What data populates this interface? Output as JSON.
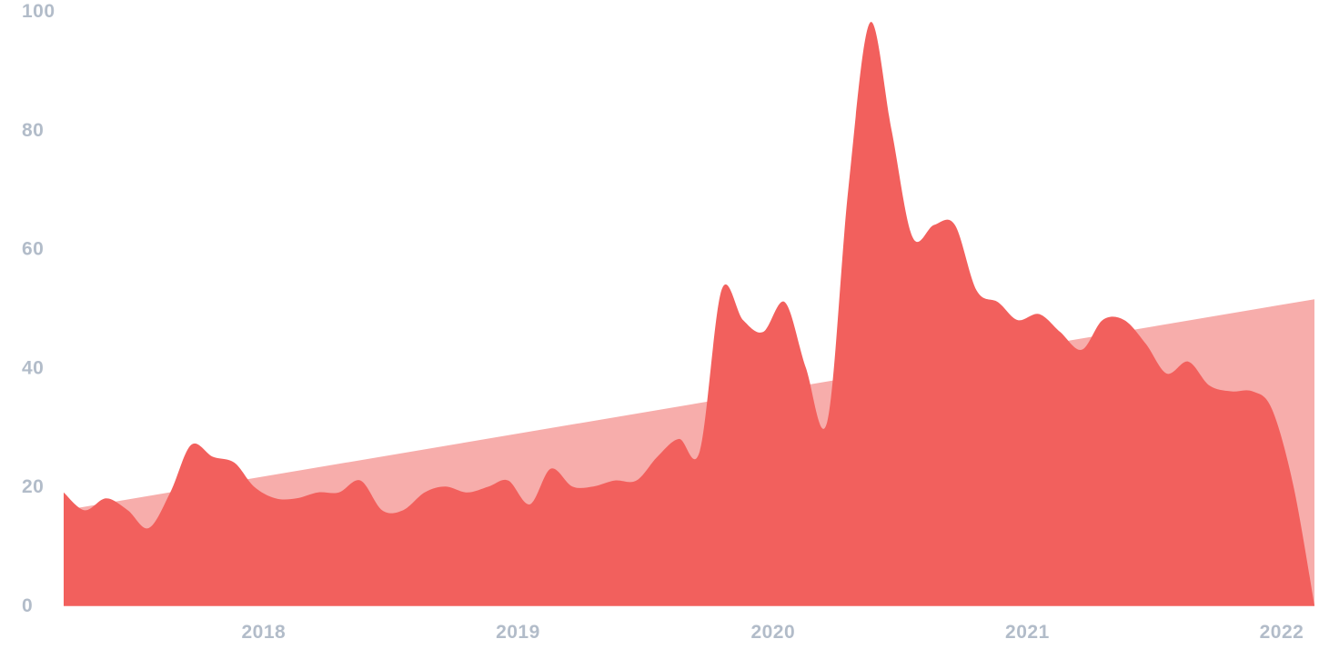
{
  "colors": {
    "main_series": "#f2605d",
    "trend_series": "#f7adab",
    "tick_text": "#b2bcc9",
    "baseline": "#f2605d"
  },
  "chart_data": {
    "type": "area",
    "title": "",
    "xlabel": "",
    "ylabel": "",
    "xlim": [
      "2017-06",
      "2022-05"
    ],
    "ylim": [
      0,
      100
    ],
    "yticks": [
      0,
      20,
      40,
      60,
      80,
      100
    ],
    "xticks": [
      "2018",
      "2019",
      "2020",
      "2021",
      "2022"
    ],
    "grid": false,
    "legend": "none",
    "series": [
      {
        "role": "main",
        "color": "#f2605d",
        "x": [
          "2017-06-01",
          "2017-07-01",
          "2017-08-01",
          "2017-09-01",
          "2017-10-01",
          "2017-11-01",
          "2017-12-01",
          "2018-01-01",
          "2018-02-01",
          "2018-03-01",
          "2018-04-01",
          "2018-05-01",
          "2018-06-01",
          "2018-07-01",
          "2018-08-01",
          "2018-09-01",
          "2018-10-01",
          "2018-11-01",
          "2018-12-01",
          "2019-01-01",
          "2019-02-01",
          "2019-03-01",
          "2019-04-01",
          "2019-05-01",
          "2019-06-01",
          "2019-07-01",
          "2019-08-01",
          "2019-09-01",
          "2019-10-01",
          "2019-11-01",
          "2019-12-01",
          "2020-01-01",
          "2020-02-01",
          "2020-03-01",
          "2020-04-01",
          "2020-05-01",
          "2020-06-01",
          "2020-07-01",
          "2020-08-01",
          "2020-09-01",
          "2020-10-01",
          "2020-11-01",
          "2020-12-01",
          "2021-01-01",
          "2021-02-01",
          "2021-03-01",
          "2021-04-01",
          "2021-05-01",
          "2021-06-01",
          "2021-07-01",
          "2021-08-01",
          "2021-09-01",
          "2021-10-01",
          "2021-11-01",
          "2021-12-01",
          "2022-01-01",
          "2022-02-01",
          "2022-03-01",
          "2022-04-01",
          "2022-05-01"
        ],
        "values": [
          19,
          16,
          18,
          16,
          13,
          19,
          27,
          25,
          24,
          20,
          18,
          18,
          19,
          19,
          21,
          16,
          16,
          19,
          20,
          19,
          20,
          21,
          17,
          23,
          20,
          20,
          21,
          21,
          25,
          28,
          26,
          53,
          48,
          46,
          51,
          40,
          31,
          70,
          98,
          80,
          62,
          64,
          64,
          53,
          51,
          48,
          49,
          46,
          43,
          48,
          48,
          44,
          39,
          41,
          37,
          36,
          36,
          33,
          20,
          0
        ]
      },
      {
        "role": "trend",
        "color": "#f7adab",
        "x": [
          "2017-06-01",
          "2022-05-01"
        ],
        "values": [
          16,
          51.5
        ]
      }
    ]
  }
}
